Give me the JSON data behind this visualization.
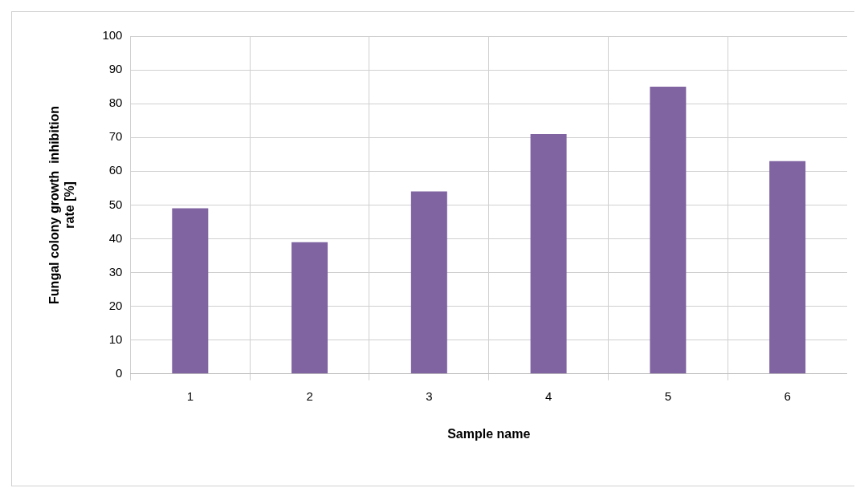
{
  "chart_data": {
    "type": "bar",
    "xlabel": "Sample name",
    "ylabel": "Fungal colony growth  inhibition rate [%]",
    "categories": [
      "1",
      "2",
      "3",
      "4",
      "5",
      "6"
    ],
    "values": [
      49,
      39,
      54,
      71,
      85,
      63
    ],
    "color": "#8064a2",
    "ylim": [
      0,
      100
    ],
    "yticks": [
      0,
      10,
      20,
      30,
      40,
      50,
      60,
      70,
      80,
      90,
      100
    ],
    "grid": true,
    "legend": false
  }
}
